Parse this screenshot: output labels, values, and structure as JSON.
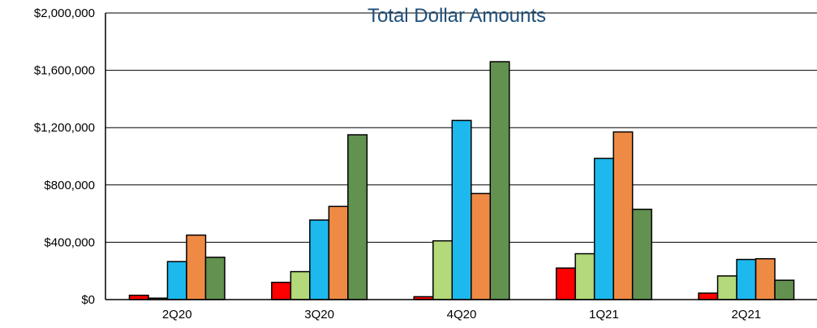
{
  "chart_data": {
    "type": "bar",
    "title": "Total Dollar Amounts",
    "xlabel": "",
    "ylabel": "",
    "categories": [
      "2Q20",
      "3Q20",
      "4Q20",
      "1Q21",
      "2Q21"
    ],
    "ylim": [
      0,
      2000000
    ],
    "yticks": [
      0,
      400000,
      800000,
      1200000,
      1600000,
      2000000
    ],
    "ytick_labels": [
      "$0",
      "$400,000",
      "$800,000",
      "$1,200,000",
      "$1,600,000",
      "$2,000,000"
    ],
    "grid": "horizontal",
    "legend": "none",
    "series": [
      {
        "color": "#ff0000",
        "values": [
          30000,
          120000,
          20000,
          220000,
          45000
        ]
      },
      {
        "color": "#b3d97a",
        "values": [
          10000,
          195000,
          410000,
          320000,
          165000
        ]
      },
      {
        "color": "#1cb8ee",
        "values": [
          265000,
          555000,
          1250000,
          985000,
          280000
        ]
      },
      {
        "color": "#ef8a45",
        "values": [
          450000,
          650000,
          740000,
          1170000,
          285000
        ]
      },
      {
        "color": "#629150",
        "values": [
          295000,
          1150000,
          1660000,
          630000,
          135000
        ]
      }
    ]
  }
}
